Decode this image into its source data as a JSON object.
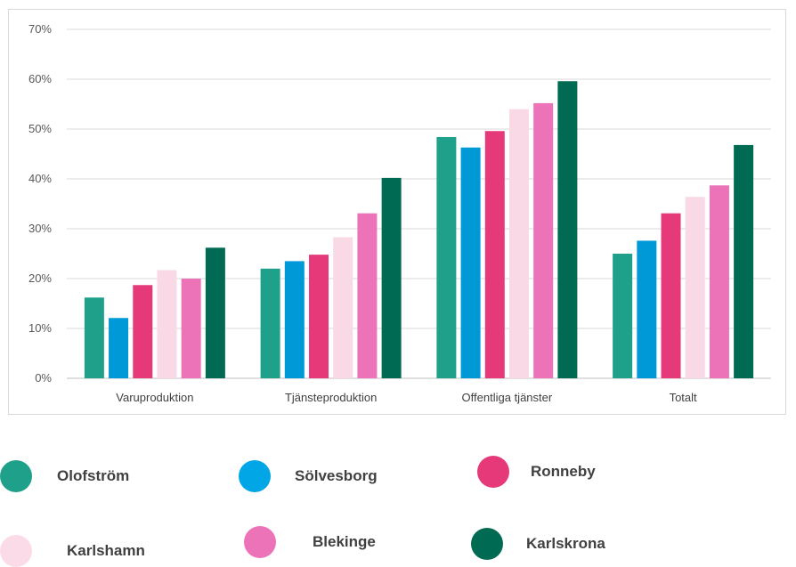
{
  "chart_data": {
    "type": "bar",
    "categories": [
      "Varuproduktion",
      "Tjänsteproduktion",
      "Offentliga tjänster",
      "Totalt"
    ],
    "ylim": [
      0,
      0.7
    ],
    "yticks": [
      "0%",
      "10%",
      "20%",
      "30%",
      "40%",
      "50%",
      "60%",
      "70%"
    ],
    "grid": true,
    "legend_position": "bottom",
    "series": [
      {
        "name": "Olofström",
        "color": "#1fa08a",
        "values": [
          0.162,
          0.22,
          0.484,
          0.25
        ]
      },
      {
        "name": "Sölvesborg",
        "color": "#0099d8",
        "values": [
          0.121,
          0.235,
          0.463,
          0.276
        ]
      },
      {
        "name": "Ronneby",
        "color": "#e5397a",
        "values": [
          0.187,
          0.248,
          0.496,
          0.331
        ]
      },
      {
        "name": "Karlshamn",
        "color": "#f9d9e6",
        "values": [
          0.217,
          0.283,
          0.54,
          0.364
        ]
      },
      {
        "name": "Blekinge",
        "color": "#ed73b8",
        "values": [
          0.2,
          0.331,
          0.552,
          0.387
        ]
      },
      {
        "name": "Karlskrona",
        "color": "#006b52",
        "values": [
          0.262,
          0.402,
          0.596,
          0.468
        ]
      }
    ]
  },
  "legend": [
    {
      "label": "Olofström",
      "color": "#1fa08a"
    },
    {
      "label": "Sölvesborg",
      "color": "#00a6e6"
    },
    {
      "label": "Ronneby",
      "color": "#e5397a"
    },
    {
      "label": "Karlshamn",
      "color": "#fbdbe8"
    },
    {
      "label": "Blekinge",
      "color": "#ed73b8"
    },
    {
      "label": "Karlskrona",
      "color": "#006b52"
    }
  ]
}
